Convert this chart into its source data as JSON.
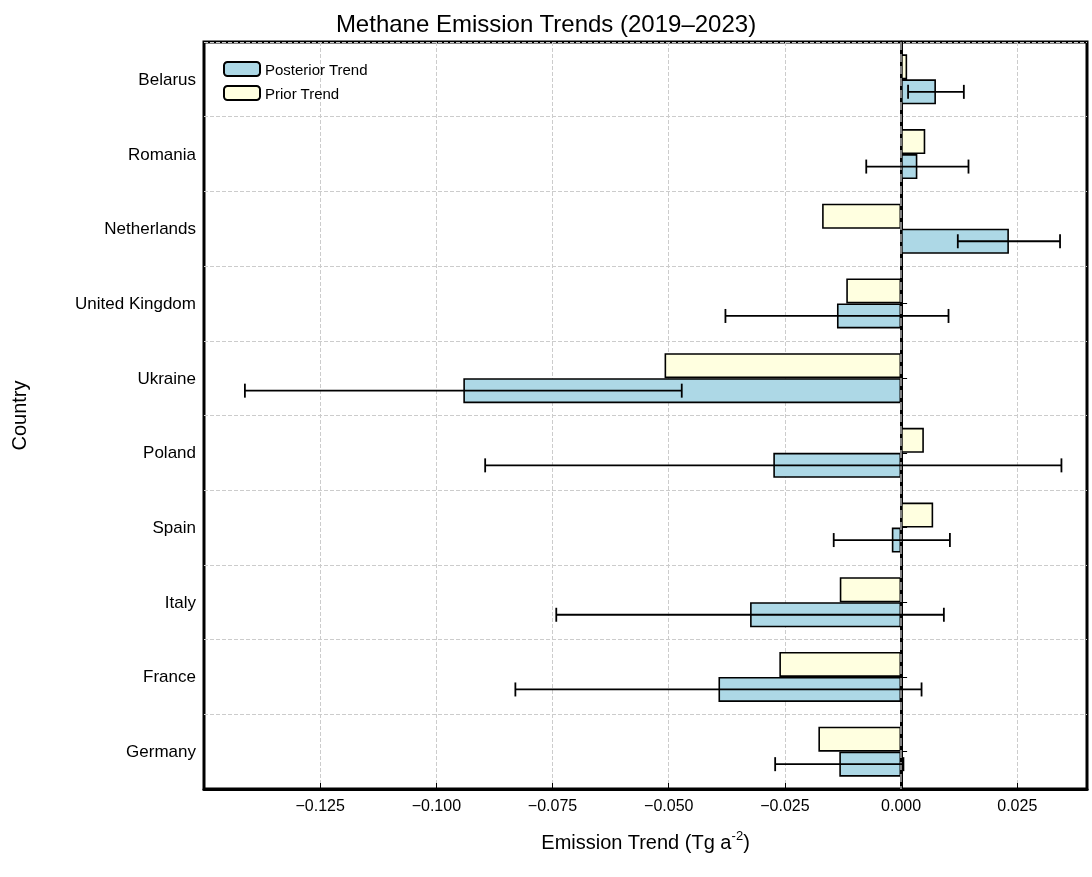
{
  "chart_data": {
    "type": "bar",
    "orientation": "horizontal",
    "title": "Methane Emission Trends (2019–2023)",
    "xlabel": "Emission Trend (Tg a$^{-2}$)",
    "ylabel": "Country",
    "categories": [
      "Belarus",
      "Romania",
      "Netherlands",
      "United Kingdom",
      "Ukraine",
      "Poland",
      "Spain",
      "Italy",
      "France",
      "Germany"
    ],
    "series": [
      {
        "name": "Posterior Trend",
        "color": "#add8e6",
        "values": [
          0.0075,
          0.0035,
          0.0232,
          -0.0138,
          -0.0942,
          -0.0275,
          -0.002,
          -0.0325,
          -0.0393,
          -0.0133
        ],
        "errors": [
          0.006,
          0.011,
          0.011,
          0.024,
          0.047,
          0.062,
          0.0125,
          0.0417,
          0.0437,
          0.0138
        ]
      },
      {
        "name": "Prior Trend",
        "color": "#ffffe0",
        "values": [
          0.0013,
          0.0052,
          -0.017,
          -0.0118,
          -0.0509,
          0.0049,
          0.0069,
          -0.0132,
          -0.0262,
          -0.0178
        ]
      }
    ],
    "xlim": [
      -0.15,
      0.04
    ],
    "xticks": [
      {
        "value": -0.125,
        "label": "−0.125"
      },
      {
        "value": -0.1,
        "label": "−0.100"
      },
      {
        "value": -0.075,
        "label": "−0.075"
      },
      {
        "value": -0.05,
        "label": "−0.050"
      },
      {
        "value": -0.025,
        "label": "−0.025"
      },
      {
        "value": 0,
        "label": "0.000"
      },
      {
        "value": 0.025,
        "label": "0.025"
      }
    ],
    "ref_lines": [
      {
        "axis": "x",
        "value": 0,
        "color": "#808080",
        "line_style": "dashed"
      }
    ],
    "grid": true,
    "legend": "top left"
  }
}
